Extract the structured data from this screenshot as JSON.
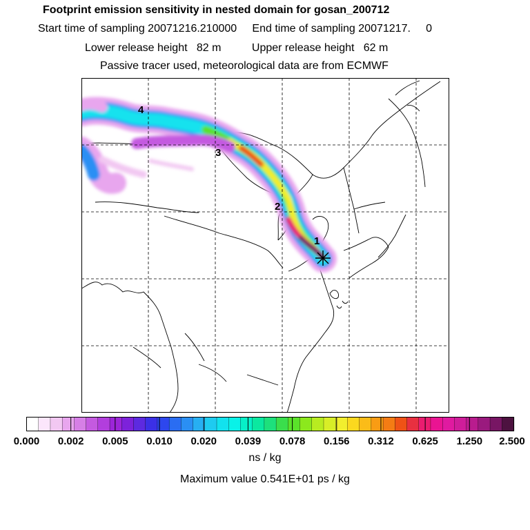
{
  "header": {
    "title": "Footprint emission sensitivity in nested domain for gosan_200712",
    "sampling_line": "Start time of sampling 20071216.210000     End time of sampling 20071217.     0",
    "release_line": "Lower release height   82 m          Upper release height   62 m",
    "tracer_line": "Passive tracer used, meteorological data are from ECMWF"
  },
  "map": {
    "release_site": "gosan",
    "day_markers": [
      "1",
      "2",
      "3",
      "4"
    ],
    "gridlines": "dashed"
  },
  "colorbar": {
    "tick_labels": [
      "0.000",
      "0.002",
      "0.005",
      "0.010",
      "0.020",
      "0.039",
      "0.078",
      "0.156",
      "0.312",
      "0.625",
      "1.250",
      "2.500"
    ],
    "colors": [
      "#ffffff",
      "#fbe6fb",
      "#f2c8f2",
      "#e8a6ee",
      "#d67fe6",
      "#c45ae0",
      "#b23edd",
      "#9c25d8",
      "#7d22da",
      "#5d2ae0",
      "#3b30e6",
      "#2d47ee",
      "#2a6df2",
      "#2a8ff4",
      "#27aff2",
      "#1ecbf0",
      "#12e2ee",
      "#09f2e8",
      "#07f0c8",
      "#0be8a0",
      "#1de07c",
      "#3ade4c",
      "#5ae22a",
      "#8ce81d",
      "#b8ec20",
      "#d8ee27",
      "#f2ee2e",
      "#fbd81f",
      "#fbbc18",
      "#f99c14",
      "#f47c14",
      "#ef5216",
      "#e83040",
      "#ea1c70",
      "#ea1492",
      "#e01aa0",
      "#cf1d9a",
      "#b91c8e",
      "#9a1a7e",
      "#781664",
      "#4d1240"
    ],
    "units": "ns / kg"
  },
  "footer": {
    "max_value": "Maximum value  0.541E+01 ps / kg"
  }
}
